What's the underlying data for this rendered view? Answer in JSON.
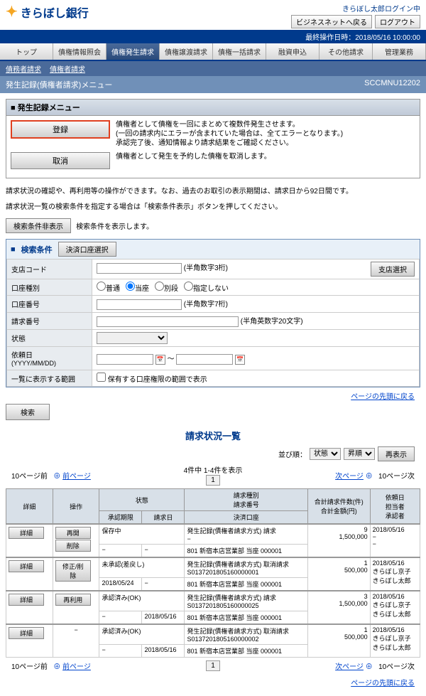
{
  "header": {
    "bank_name": "きらぼし銀行",
    "user_info": "きらぼし太郎ログイン中",
    "btn_back": "ビジネスネットへ戻る",
    "btn_logout": "ログアウト",
    "timestamp": "最終操作日時：2018/05/16 10:00:00"
  },
  "tabs": [
    "トップ",
    "債権情報照会",
    "債権発生請求",
    "債権譲渡請求",
    "債権一括請求",
    "融資申込",
    "その他請求",
    "管理業務"
  ],
  "active_tab": 2,
  "subtabs": [
    "債務者請求",
    "債権者請求"
  ],
  "section": {
    "title": "発生記録(債権者請求)メニュー",
    "code": "SCCMNU12202"
  },
  "menu": {
    "header": "発生記録メニュー",
    "rows": [
      {
        "btn": "登録",
        "desc": "債権者として債権を一回にまとめて複数件発生させます。\n(一回の請求内にエラーが含まれていた場合は、全てエラーとなります。)\n承認完了後、通知情報より請求結果をご確認ください。",
        "hl": true
      },
      {
        "btn": "取消",
        "desc": "債権者として発生を予約した債権を取消します。",
        "hl": false
      }
    ]
  },
  "notes": [
    "請求状況の確認や、再利用等の操作ができます。なお、過去のお取引の表示期間は、請求日から92日間です。",
    "請求状況一覧の検索条件を指定する場合は「検索条件表示」ボタンを押してください。"
  ],
  "search_toggle_btn": "検索条件非表示",
  "search_toggle_desc": "検索条件を表示します。",
  "search": {
    "header": "検索条件",
    "acct_btn": "決済口座選択",
    "rows": {
      "branch": {
        "lbl": "支店コード",
        "ph": "(半角数字3桁)",
        "btn": "支店選択"
      },
      "acct_type": {
        "lbl": "口座種別",
        "opts": [
          "普通",
          "当座",
          "別段",
          "指定しない"
        ],
        "sel": 1
      },
      "acct_no": {
        "lbl": "口座番号",
        "ph": "(半角数字7桁)"
      },
      "req_no": {
        "lbl": "請求番号",
        "ph": "(半角英数字20文字)"
      },
      "status": {
        "lbl": "状態"
      },
      "req_date": {
        "lbl": "依頼日",
        "hint": "(YYYY/MM/DD)"
      },
      "disp_range": {
        "lbl": "一覧に表示する範囲",
        "chk": "保有する口座権限の範囲で表示"
      }
    }
  },
  "page_top_link": "ページの先頭に戻る",
  "search_btn": "検索",
  "list": {
    "title": "請求状況一覧",
    "sort_lbl": "並び順：",
    "sort_field": "状態",
    "sort_dir": "昇順",
    "redisplay": "再表示",
    "count": "4件中 1-4件を表示",
    "prev10": "10ページ前",
    "prev": "前ページ",
    "next": "次ページ",
    "next10": "10ページ次",
    "page": "1",
    "headers": {
      "detail": "詳細",
      "op": "操作",
      "status": "状態",
      "req_type": "請求種別\n請求番号",
      "total": "合計請求件数(件)\n合計金額(円)",
      "req_date": "依頼日\n担当者\n承認者",
      "approve_due": "承認期限",
      "req_date2": "請求日",
      "acct": "決済口座"
    },
    "rows": [
      {
        "ops": [
          "再開",
          "削除"
        ],
        "status": "保存中",
        "approve_due": "−",
        "req_date": "−",
        "req_type": "発生記録(債権者請求方式) 請求",
        "req_no": "−",
        "acct": "801 新宿本店営業部 当座 000001",
        "cnt": "9",
        "amt": "1,500,000",
        "dep_date": "2018/05/16",
        "person": "−",
        "approver": "−"
      },
      {
        "ops": [
          "修正/削除"
        ],
        "status": "未承認(差戻し)",
        "approve_due": "2018/05/24",
        "req_date": "−",
        "req_type": "発生記録(債権者請求方式) 取消請求",
        "req_no": "S0137201805160000001",
        "acct": "801 新宿本店営業部 当座 000001",
        "cnt": "1",
        "amt": "500,000",
        "dep_date": "2018/05/16",
        "person": "きらぼし京子",
        "approver": "きらぼし太郎"
      },
      {
        "ops": [
          "再利用"
        ],
        "status": "承認済み(OK)",
        "approve_due": "−",
        "req_date": "2018/05/16",
        "req_type": "発生記録(債権者請求方式) 請求",
        "req_no": "S0137201805160000025",
        "acct": "801 新宿本店営業部 当座 000001",
        "cnt": "3",
        "amt": "1,500,000",
        "dep_date": "2018/05/16",
        "person": "きらぼし京子",
        "approver": "きらぼし太郎"
      },
      {
        "ops": [
          "−"
        ],
        "status": "承認済み(OK)",
        "approve_due": "−",
        "req_date": "2018/05/16",
        "req_type": "発生記録(債権者請求方式) 取消請求",
        "req_no": "S0137201805160000002",
        "acct": "801 新宿本店営業部 当座 000001",
        "cnt": "1",
        "amt": "500,000",
        "dep_date": "2018/05/16",
        "person": "きらぼし京子",
        "approver": "きらぼし太郎"
      }
    ],
    "detail_btn": "詳細"
  }
}
